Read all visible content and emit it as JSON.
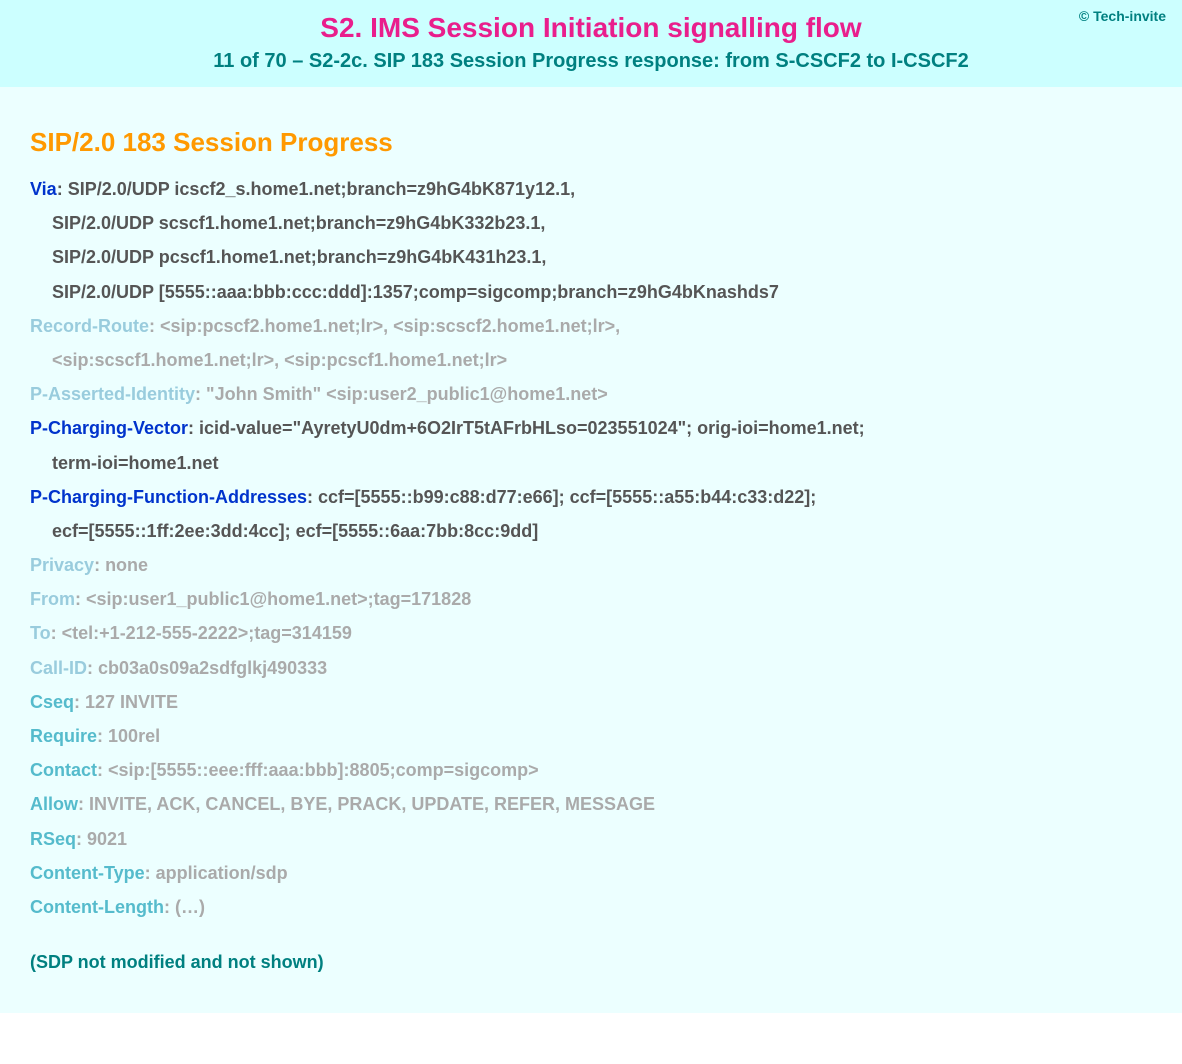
{
  "copyright": "© Tech-invite",
  "title": "S2. IMS Session Initiation signalling flow",
  "subtitle": "11 of 70 – S2-2c. SIP 183 Session Progress response: from S-CSCF2 to I-CSCF2",
  "status_line": "SIP/2.0 183 Session Progress",
  "headers": {
    "via": {
      "name": "Via",
      "line1": "SIP/2.0/UDP icscf2_s.home1.net;branch=z9hG4bK871y12.1,",
      "line2": "SIP/2.0/UDP scscf1.home1.net;branch=z9hG4bK332b23.1,",
      "line3": "SIP/2.0/UDP pcscf1.home1.net;branch=z9hG4bK431h23.1,",
      "line4": "SIP/2.0/UDP [5555::aaa:bbb:ccc:ddd]:1357;comp=sigcomp;branch=z9hG4bKnashds7"
    },
    "record_route": {
      "name": "Record-Route",
      "line1": "<sip:pcscf2.home1.net;lr>, <sip:scscf2.home1.net;lr>,",
      "line2": "<sip:scscf1.home1.net;lr>, <sip:pcscf1.home1.net;lr>"
    },
    "p_asserted_identity": {
      "name": "P-Asserted-Identity",
      "value": "\"John Smith\" <sip:user2_public1@home1.net>"
    },
    "p_charging_vector": {
      "name": "P-Charging-Vector",
      "line1": "icid-value=\"AyretyU0dm+6O2IrT5tAFrbHLso=023551024\"; orig-ioi=home1.net;",
      "line2": "term-ioi=home1.net"
    },
    "p_charging_function_addresses": {
      "name": "P-Charging-Function-Addresses",
      "line1": "ccf=[5555::b99:c88:d77:e66]; ccf=[5555::a55:b44:c33:d22];",
      "line2": "ecf=[5555::1ff:2ee:3dd:4cc]; ecf=[5555::6aa:7bb:8cc:9dd]"
    },
    "privacy": {
      "name": "Privacy",
      "value": "none"
    },
    "from": {
      "name": "From",
      "value": "<sip:user1_public1@home1.net>;tag=171828"
    },
    "to": {
      "name": "To",
      "value": "<tel:+1-212-555-2222>;tag=314159"
    },
    "call_id": {
      "name": "Call-ID",
      "value": "cb03a0s09a2sdfglkj490333"
    },
    "cseq": {
      "name": "Cseq",
      "value": "127 INVITE"
    },
    "require": {
      "name": "Require",
      "value": "100rel"
    },
    "contact": {
      "name": "Contact",
      "value": "<sip:[5555::eee:fff:aaa:bbb]:8805;comp=sigcomp>"
    },
    "allow": {
      "name": "Allow",
      "value": "INVITE, ACK, CANCEL, BYE, PRACK, UPDATE, REFER, MESSAGE"
    },
    "rseq": {
      "name": "RSeq",
      "value": "9021"
    },
    "content_type": {
      "name": "Content-Type",
      "value": "application/sdp"
    },
    "content_length": {
      "name": "Content-Length",
      "value": "(…)"
    }
  },
  "sdp_note": "(SDP not modified and not shown)",
  "colors": {
    "header_bg": "#ccffff",
    "content_bg": "#ecffff",
    "title_color": "#e91e8c",
    "subtitle_color": "#008080",
    "status_color": "#ff9900",
    "name_blue": "#0033cc",
    "name_light": "#99ccdd",
    "name_teal": "#55bbcc",
    "val_dark": "#555555",
    "val_gray": "#aaaaaa"
  }
}
